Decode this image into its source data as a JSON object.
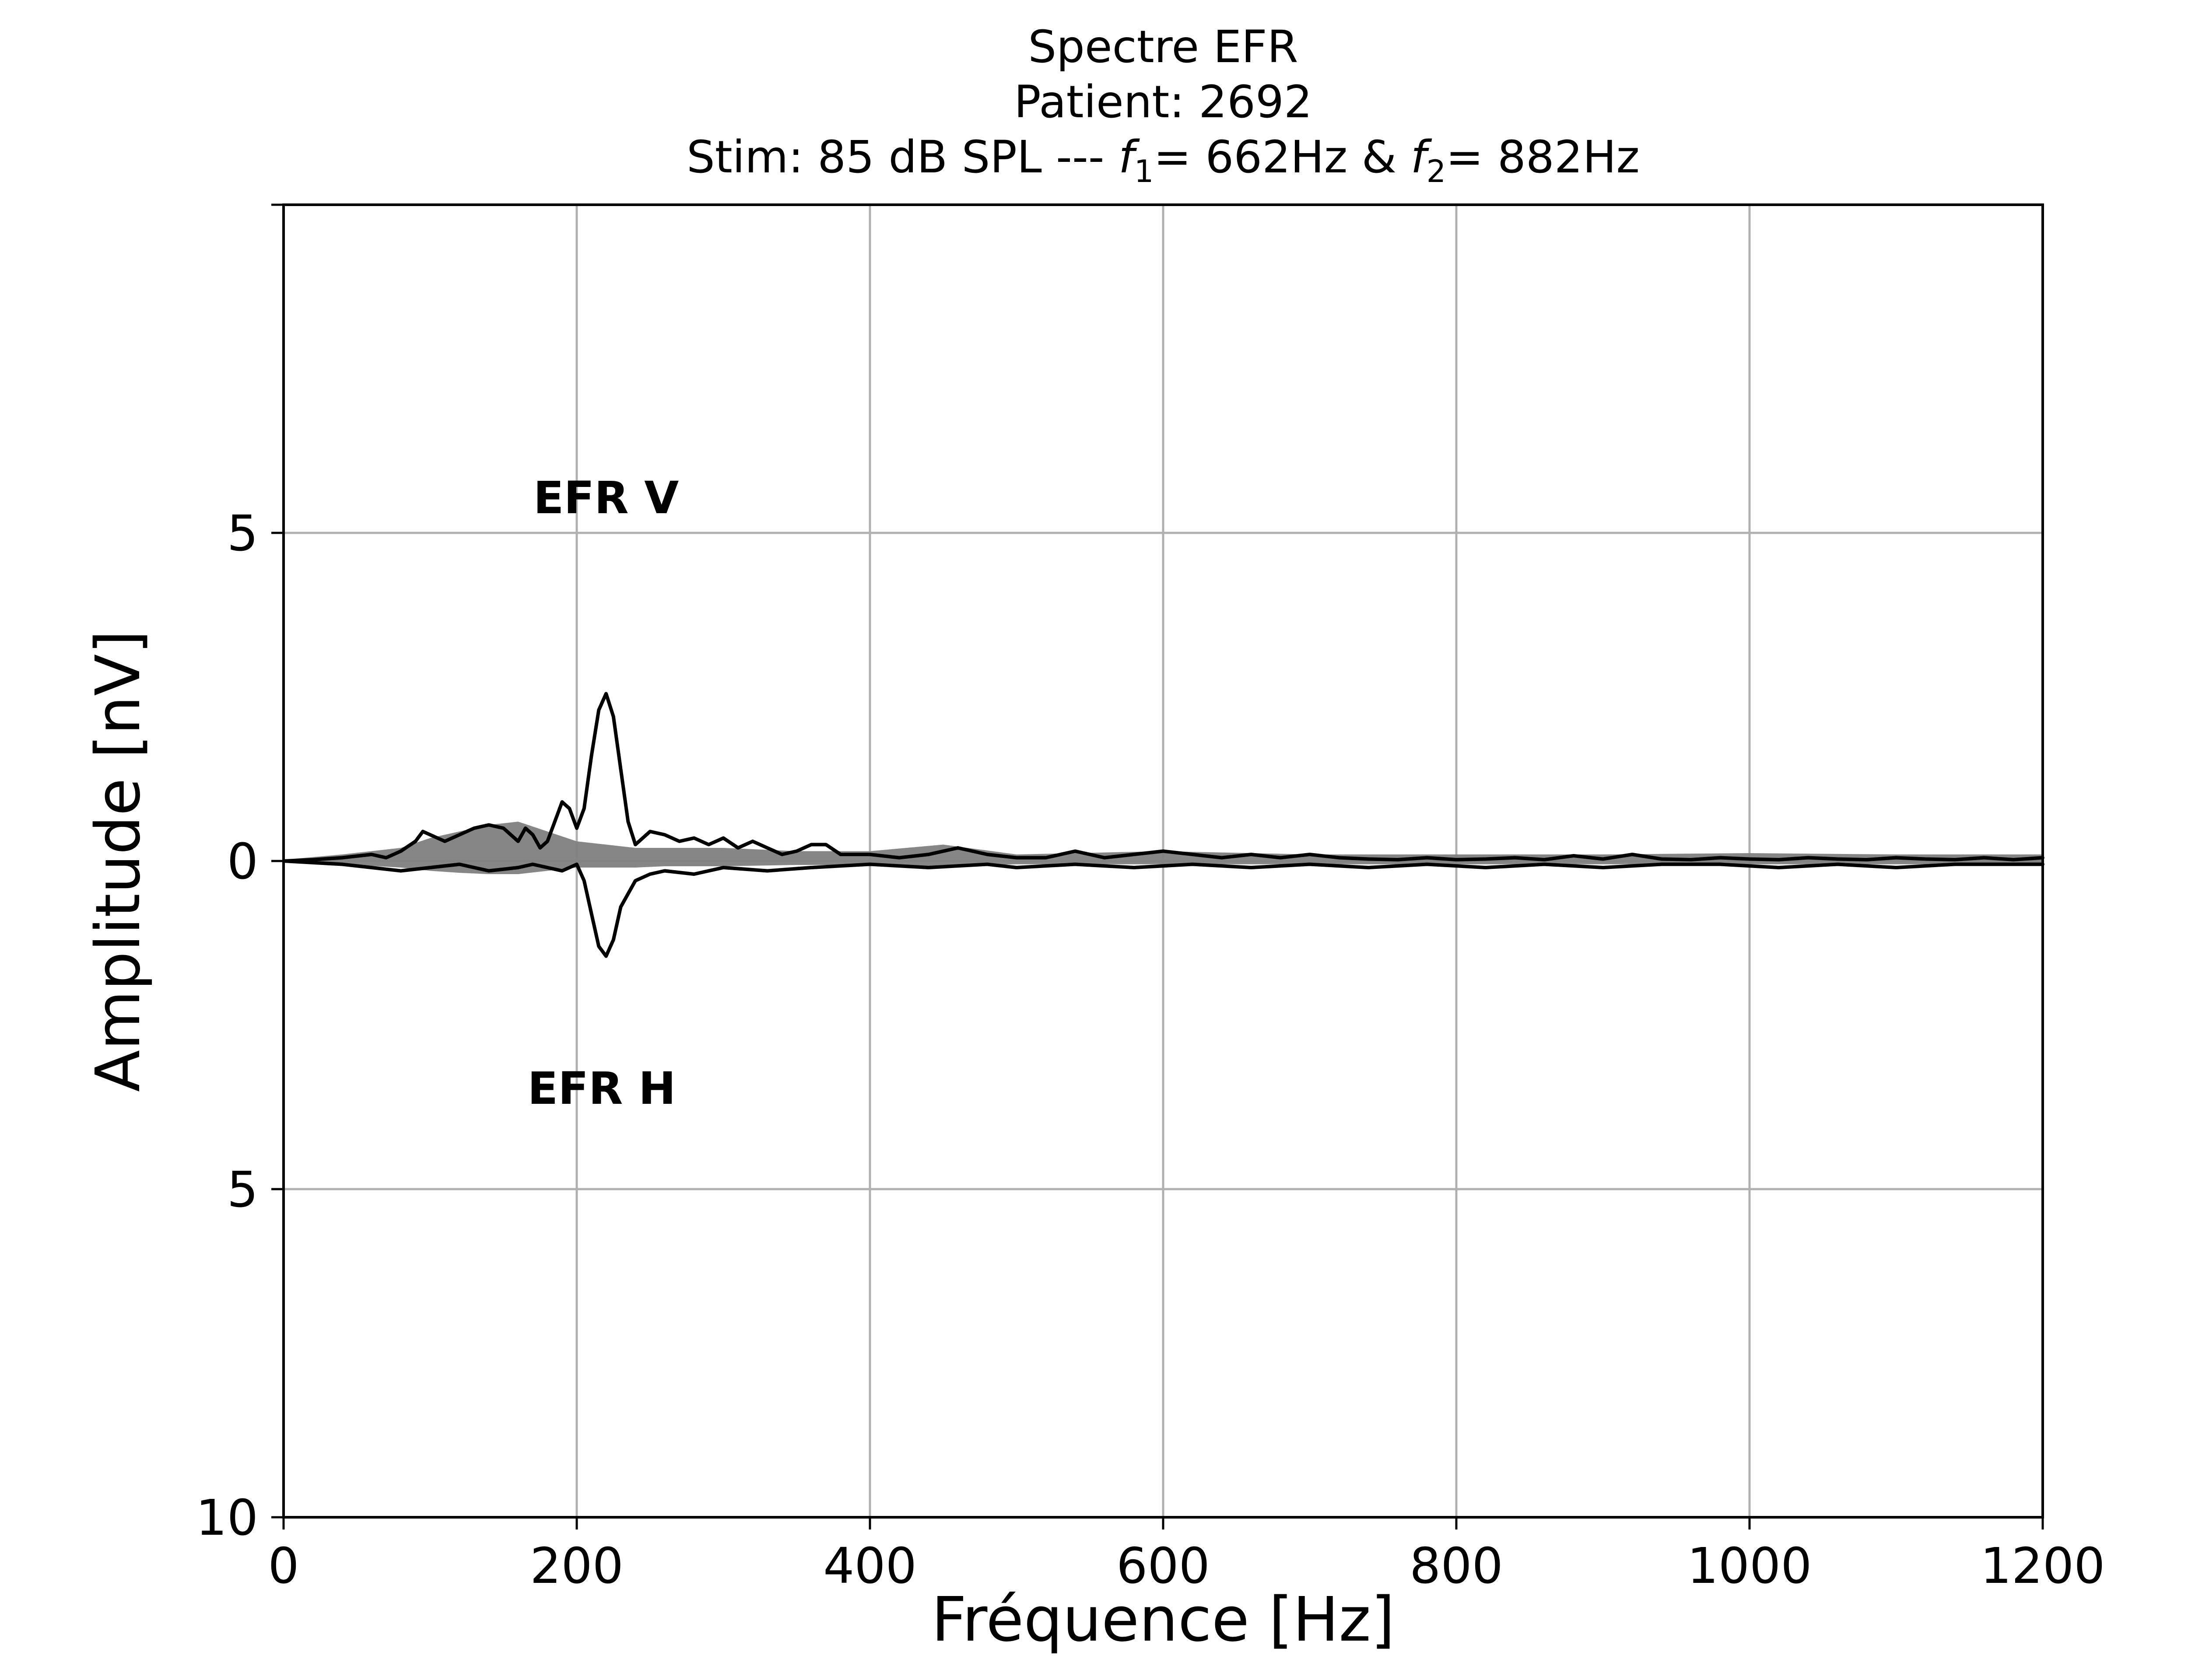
{
  "chart_data": {
    "type": "line",
    "title": {
      "line1": "Spectre EFR",
      "line2": "Patient: 2692",
      "line3_prefix": "Stim: 85 dB SPL --- ",
      "f1_symbol": "f",
      "f1_sub": "1",
      "f1_value": "= 662Hz & ",
      "f2_symbol": "f",
      "f2_sub": "2",
      "f2_value": "= 882Hz"
    },
    "xlabel": "Fréquence [Hz]",
    "ylabel": "Amplitude [nV]",
    "xlim": [
      0,
      1200
    ],
    "ylim": [
      -10,
      10
    ],
    "x_ticks": [
      0,
      200,
      400,
      600,
      800,
      1000,
      1200
    ],
    "x_tick_labels": [
      "0",
      "200",
      "400",
      "600",
      "800",
      "1000",
      "1200"
    ],
    "y_ticks": [
      10,
      5,
      0,
      -5,
      -10
    ],
    "y_tick_labels": [
      "",
      "5",
      "0",
      "5",
      "10"
    ],
    "grid": true,
    "annotations": [
      {
        "text": "EFR V",
        "x": 220,
        "y": 5.3
      },
      {
        "text": "EFR H",
        "x": 217,
        "y": -3.7
      }
    ],
    "series": [
      {
        "style": "line",
        "color": "#000000",
        "x": [
          0,
          20,
          40,
          60,
          70,
          80,
          90,
          95,
          100,
          110,
          120,
          130,
          140,
          150,
          160,
          165,
          170,
          175,
          180,
          185,
          190,
          195,
          200,
          205,
          210,
          215,
          220,
          225,
          230,
          235,
          240,
          245,
          250,
          260,
          270,
          280,
          290,
          300,
          310,
          320,
          330,
          340,
          350,
          360,
          370,
          380,
          390,
          400,
          420,
          440,
          460,
          480,
          500,
          520,
          540,
          560,
          580,
          600,
          620,
          640,
          660,
          680,
          700,
          720,
          740,
          760,
          780,
          800,
          820,
          840,
          860,
          880,
          900,
          920,
          940,
          960,
          980,
          1000,
          1020,
          1040,
          1060,
          1080,
          1100,
          1120,
          1140,
          1160,
          1180,
          1200
        ],
        "y": [
          0,
          0.02,
          0.05,
          0.1,
          0.05,
          0.15,
          0.3,
          0.45,
          0.4,
          0.3,
          0.4,
          0.5,
          0.55,
          0.5,
          0.3,
          0.5,
          0.4,
          0.2,
          0.3,
          0.6,
          0.9,
          0.8,
          0.5,
          0.8,
          1.6,
          2.3,
          2.55,
          2.2,
          1.4,
          0.6,
          0.25,
          0.35,
          0.45,
          0.4,
          0.3,
          0.35,
          0.25,
          0.35,
          0.2,
          0.3,
          0.2,
          0.1,
          0.15,
          0.25,
          0.25,
          0.1,
          0.1,
          0.1,
          0.05,
          0.1,
          0.2,
          0.1,
          0.05,
          0.05,
          0.15,
          0.05,
          0.1,
          0.15,
          0.1,
          0.05,
          0.1,
          0.05,
          0.1,
          0.05,
          0.03,
          0.02,
          0.05,
          0.02,
          0.03,
          0.05,
          0.02,
          0.08,
          0.03,
          0.1,
          0.03,
          0.02,
          0.05,
          0.03,
          0.02,
          0.05,
          0.03,
          0.02,
          0.05,
          0.03,
          0.02,
          0.05,
          0.02,
          0.05
        ]
      },
      {
        "style": "line",
        "color": "#000000",
        "x": [
          0,
          40,
          60,
          80,
          100,
          120,
          140,
          160,
          170,
          180,
          190,
          200,
          205,
          210,
          215,
          220,
          225,
          230,
          240,
          250,
          260,
          280,
          300,
          330,
          360,
          400,
          440,
          480,
          500,
          540,
          580,
          620,
          660,
          700,
          740,
          780,
          820,
          860,
          900,
          940,
          980,
          1020,
          1060,
          1100,
          1140,
          1200
        ],
        "y": [
          0,
          -0.05,
          -0.1,
          -0.15,
          -0.1,
          -0.05,
          -0.15,
          -0.1,
          -0.05,
          -0.1,
          -0.15,
          -0.05,
          -0.3,
          -0.8,
          -1.3,
          -1.45,
          -1.2,
          -0.7,
          -0.3,
          -0.2,
          -0.15,
          -0.2,
          -0.1,
          -0.15,
          -0.1,
          -0.05,
          -0.1,
          -0.05,
          -0.1,
          -0.05,
          -0.1,
          -0.05,
          -0.1,
          -0.05,
          -0.1,
          -0.05,
          -0.1,
          -0.05,
          -0.1,
          -0.05,
          -0.05,
          -0.1,
          -0.05,
          -0.1,
          -0.05,
          -0.05
        ]
      }
    ],
    "noise_band": {
      "style": "filled-area",
      "color": "#7f7f7f",
      "x": [
        0,
        40,
        80,
        100,
        120,
        140,
        160,
        180,
        200,
        220,
        240,
        260,
        300,
        350,
        400,
        450,
        500,
        600,
        700,
        800,
        900,
        1000,
        1100,
        1200
      ],
      "upper": [
        0.02,
        0.1,
        0.2,
        0.35,
        0.45,
        0.55,
        0.6,
        0.45,
        0.3,
        0.25,
        0.2,
        0.2,
        0.2,
        0.15,
        0.15,
        0.25,
        0.1,
        0.15,
        0.1,
        0.1,
        0.1,
        0.12,
        0.1,
        0.1
      ],
      "lower": [
        -0.02,
        -0.05,
        -0.1,
        -0.15,
        -0.18,
        -0.2,
        -0.2,
        -0.15,
        -0.1,
        -0.1,
        -0.1,
        -0.08,
        -0.08,
        -0.06,
        -0.06,
        -0.08,
        -0.05,
        -0.05,
        -0.05,
        -0.05,
        -0.05,
        -0.05,
        -0.05,
        -0.05
      ]
    }
  }
}
